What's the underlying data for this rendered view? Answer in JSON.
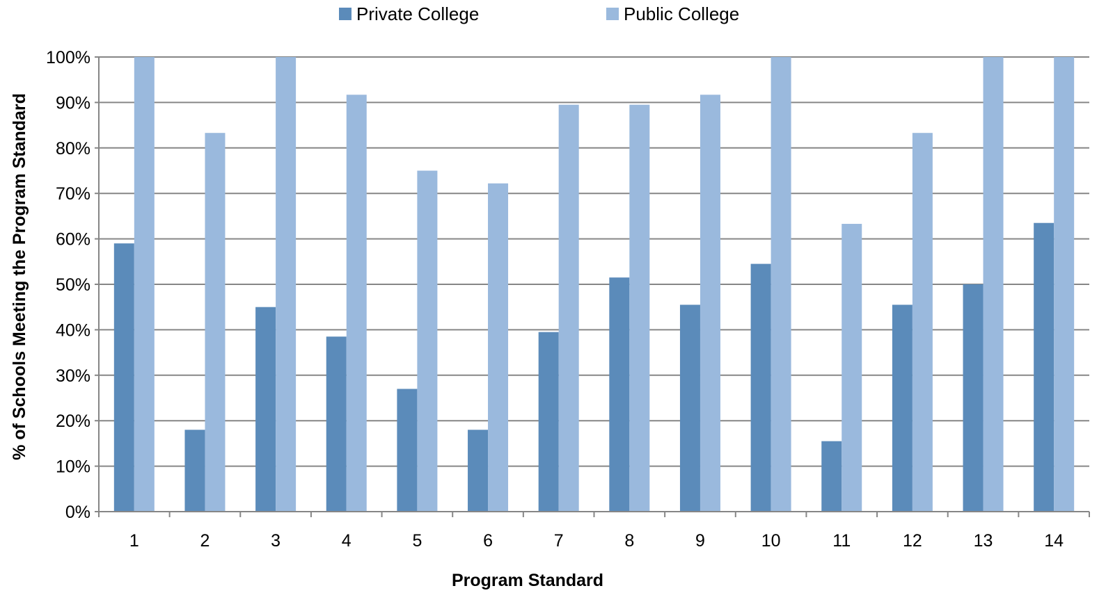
{
  "chart_data": {
    "type": "bar",
    "title": "",
    "xlabel": "Program Standard",
    "ylabel": "% of Schools Meeting the Program Standard",
    "categories": [
      "1",
      "2",
      "3",
      "4",
      "5",
      "6",
      "7",
      "8",
      "9",
      "10",
      "11",
      "12",
      "13",
      "14"
    ],
    "series": [
      {
        "name": "Private College",
        "color": "#5b8bba",
        "values": [
          59,
          18,
          45,
          38.5,
          27,
          18,
          39.5,
          51.5,
          45.5,
          54.5,
          15.5,
          45.5,
          50,
          63.5
        ]
      },
      {
        "name": "Public College",
        "color": "#9ab9dd",
        "values": [
          100,
          83.3,
          100,
          91.7,
          75,
          72.2,
          89.5,
          89.5,
          91.7,
          100,
          63.3,
          83.3,
          100,
          100
        ]
      }
    ],
    "ylim": [
      0,
      100
    ],
    "yticks": [
      "0%",
      "10%",
      "20%",
      "30%",
      "40%",
      "50%",
      "60%",
      "70%",
      "80%",
      "90%",
      "100%"
    ],
    "grid": true,
    "legend_position": "top"
  },
  "colors": {
    "gridline": "#868686",
    "axis": "#868686"
  }
}
